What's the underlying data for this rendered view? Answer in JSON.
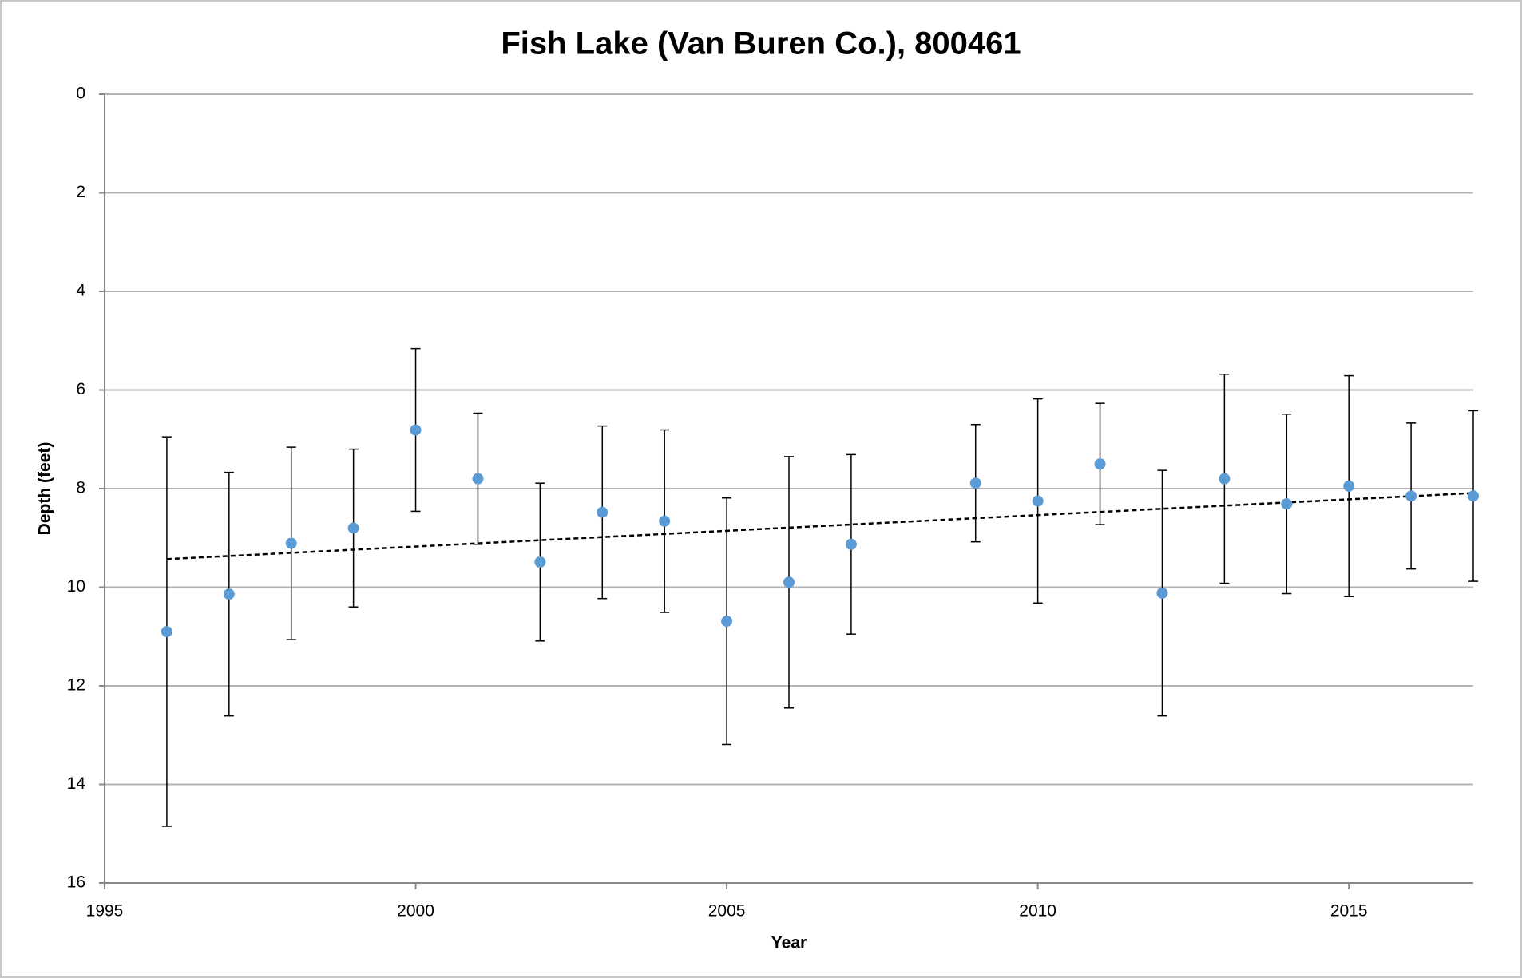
{
  "chart_data": {
    "type": "scatter",
    "title": "Fish Lake (Van Buren Co.), 800461",
    "x_label": "Year",
    "y_label": "Depth (feet)",
    "x": [
      1996,
      1997,
      1998,
      1999,
      2000,
      2001,
      2002,
      2003,
      2004,
      2005,
      2006,
      2007,
      2009,
      2010,
      2011,
      2012,
      2013,
      2014,
      2015,
      2016,
      2017
    ],
    "values": [
      10.9,
      10.14,
      9.11,
      8.8,
      6.81,
      7.8,
      9.49,
      8.48,
      8.66,
      10.69,
      9.9,
      9.13,
      7.89,
      8.25,
      7.5,
      10.12,
      7.8,
      8.31,
      7.95,
      8.15,
      8.15
    ],
    "errors": [
      3.95,
      2.47,
      1.95,
      1.6,
      1.65,
      1.33,
      1.6,
      1.75,
      1.85,
      2.5,
      2.55,
      1.82,
      1.19,
      2.07,
      1.23,
      2.49,
      2.12,
      1.82,
      2.24,
      1.48,
      1.73
    ],
    "color": "#5b9bd5",
    "trendline": {
      "x": [
        1996,
        2017
      ],
      "values": [
        9.43,
        8.09
      ]
    },
    "xlim": [
      1995,
      2017
    ],
    "xticks": [
      1995,
      2000,
      2005,
      2010,
      2015
    ],
    "ylim": [
      0,
      16
    ],
    "yticks": [
      0,
      2,
      4,
      6,
      8,
      10,
      12,
      14,
      16
    ],
    "y_reversed": true,
    "grid": true
  }
}
